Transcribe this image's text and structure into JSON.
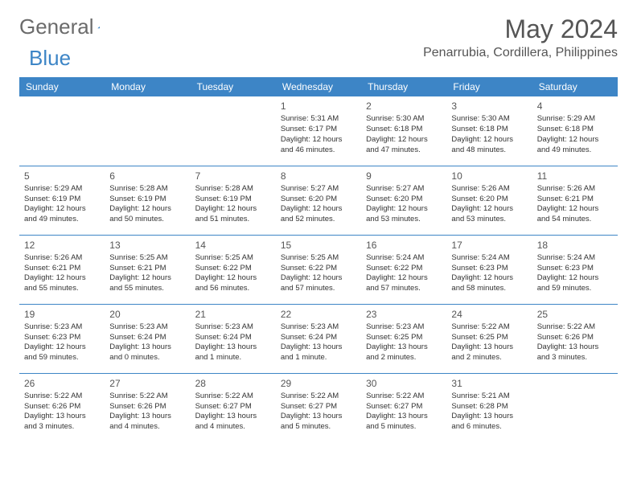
{
  "logo": {
    "text1": "General",
    "text2": "Blue"
  },
  "header": {
    "month_title": "May 2024",
    "location": "Penarrubia, Cordillera, Philippines"
  },
  "colors": {
    "header_bg": "#3d85c6",
    "header_text": "#ffffff",
    "border": "#3d85c6",
    "body_text": "#333333",
    "title_text": "#555555"
  },
  "day_headers": [
    "Sunday",
    "Monday",
    "Tuesday",
    "Wednesday",
    "Thursday",
    "Friday",
    "Saturday"
  ],
  "weeks": [
    [
      {
        "n": "",
        "sr": "",
        "ss": "",
        "dl": ""
      },
      {
        "n": "",
        "sr": "",
        "ss": "",
        "dl": ""
      },
      {
        "n": "",
        "sr": "",
        "ss": "",
        "dl": ""
      },
      {
        "n": "1",
        "sr": "Sunrise: 5:31 AM",
        "ss": "Sunset: 6:17 PM",
        "dl": "Daylight: 12 hours and 46 minutes."
      },
      {
        "n": "2",
        "sr": "Sunrise: 5:30 AM",
        "ss": "Sunset: 6:18 PM",
        "dl": "Daylight: 12 hours and 47 minutes."
      },
      {
        "n": "3",
        "sr": "Sunrise: 5:30 AM",
        "ss": "Sunset: 6:18 PM",
        "dl": "Daylight: 12 hours and 48 minutes."
      },
      {
        "n": "4",
        "sr": "Sunrise: 5:29 AM",
        "ss": "Sunset: 6:18 PM",
        "dl": "Daylight: 12 hours and 49 minutes."
      }
    ],
    [
      {
        "n": "5",
        "sr": "Sunrise: 5:29 AM",
        "ss": "Sunset: 6:19 PM",
        "dl": "Daylight: 12 hours and 49 minutes."
      },
      {
        "n": "6",
        "sr": "Sunrise: 5:28 AM",
        "ss": "Sunset: 6:19 PM",
        "dl": "Daylight: 12 hours and 50 minutes."
      },
      {
        "n": "7",
        "sr": "Sunrise: 5:28 AM",
        "ss": "Sunset: 6:19 PM",
        "dl": "Daylight: 12 hours and 51 minutes."
      },
      {
        "n": "8",
        "sr": "Sunrise: 5:27 AM",
        "ss": "Sunset: 6:20 PM",
        "dl": "Daylight: 12 hours and 52 minutes."
      },
      {
        "n": "9",
        "sr": "Sunrise: 5:27 AM",
        "ss": "Sunset: 6:20 PM",
        "dl": "Daylight: 12 hours and 53 minutes."
      },
      {
        "n": "10",
        "sr": "Sunrise: 5:26 AM",
        "ss": "Sunset: 6:20 PM",
        "dl": "Daylight: 12 hours and 53 minutes."
      },
      {
        "n": "11",
        "sr": "Sunrise: 5:26 AM",
        "ss": "Sunset: 6:21 PM",
        "dl": "Daylight: 12 hours and 54 minutes."
      }
    ],
    [
      {
        "n": "12",
        "sr": "Sunrise: 5:26 AM",
        "ss": "Sunset: 6:21 PM",
        "dl": "Daylight: 12 hours and 55 minutes."
      },
      {
        "n": "13",
        "sr": "Sunrise: 5:25 AM",
        "ss": "Sunset: 6:21 PM",
        "dl": "Daylight: 12 hours and 55 minutes."
      },
      {
        "n": "14",
        "sr": "Sunrise: 5:25 AM",
        "ss": "Sunset: 6:22 PM",
        "dl": "Daylight: 12 hours and 56 minutes."
      },
      {
        "n": "15",
        "sr": "Sunrise: 5:25 AM",
        "ss": "Sunset: 6:22 PM",
        "dl": "Daylight: 12 hours and 57 minutes."
      },
      {
        "n": "16",
        "sr": "Sunrise: 5:24 AM",
        "ss": "Sunset: 6:22 PM",
        "dl": "Daylight: 12 hours and 57 minutes."
      },
      {
        "n": "17",
        "sr": "Sunrise: 5:24 AM",
        "ss": "Sunset: 6:23 PM",
        "dl": "Daylight: 12 hours and 58 minutes."
      },
      {
        "n": "18",
        "sr": "Sunrise: 5:24 AM",
        "ss": "Sunset: 6:23 PM",
        "dl": "Daylight: 12 hours and 59 minutes."
      }
    ],
    [
      {
        "n": "19",
        "sr": "Sunrise: 5:23 AM",
        "ss": "Sunset: 6:23 PM",
        "dl": "Daylight: 12 hours and 59 minutes."
      },
      {
        "n": "20",
        "sr": "Sunrise: 5:23 AM",
        "ss": "Sunset: 6:24 PM",
        "dl": "Daylight: 13 hours and 0 minutes."
      },
      {
        "n": "21",
        "sr": "Sunrise: 5:23 AM",
        "ss": "Sunset: 6:24 PM",
        "dl": "Daylight: 13 hours and 1 minute."
      },
      {
        "n": "22",
        "sr": "Sunrise: 5:23 AM",
        "ss": "Sunset: 6:24 PM",
        "dl": "Daylight: 13 hours and 1 minute."
      },
      {
        "n": "23",
        "sr": "Sunrise: 5:23 AM",
        "ss": "Sunset: 6:25 PM",
        "dl": "Daylight: 13 hours and 2 minutes."
      },
      {
        "n": "24",
        "sr": "Sunrise: 5:22 AM",
        "ss": "Sunset: 6:25 PM",
        "dl": "Daylight: 13 hours and 2 minutes."
      },
      {
        "n": "25",
        "sr": "Sunrise: 5:22 AM",
        "ss": "Sunset: 6:26 PM",
        "dl": "Daylight: 13 hours and 3 minutes."
      }
    ],
    [
      {
        "n": "26",
        "sr": "Sunrise: 5:22 AM",
        "ss": "Sunset: 6:26 PM",
        "dl": "Daylight: 13 hours and 3 minutes."
      },
      {
        "n": "27",
        "sr": "Sunrise: 5:22 AM",
        "ss": "Sunset: 6:26 PM",
        "dl": "Daylight: 13 hours and 4 minutes."
      },
      {
        "n": "28",
        "sr": "Sunrise: 5:22 AM",
        "ss": "Sunset: 6:27 PM",
        "dl": "Daylight: 13 hours and 4 minutes."
      },
      {
        "n": "29",
        "sr": "Sunrise: 5:22 AM",
        "ss": "Sunset: 6:27 PM",
        "dl": "Daylight: 13 hours and 5 minutes."
      },
      {
        "n": "30",
        "sr": "Sunrise: 5:22 AM",
        "ss": "Sunset: 6:27 PM",
        "dl": "Daylight: 13 hours and 5 minutes."
      },
      {
        "n": "31",
        "sr": "Sunrise: 5:21 AM",
        "ss": "Sunset: 6:28 PM",
        "dl": "Daylight: 13 hours and 6 minutes."
      },
      {
        "n": "",
        "sr": "",
        "ss": "",
        "dl": ""
      }
    ]
  ]
}
